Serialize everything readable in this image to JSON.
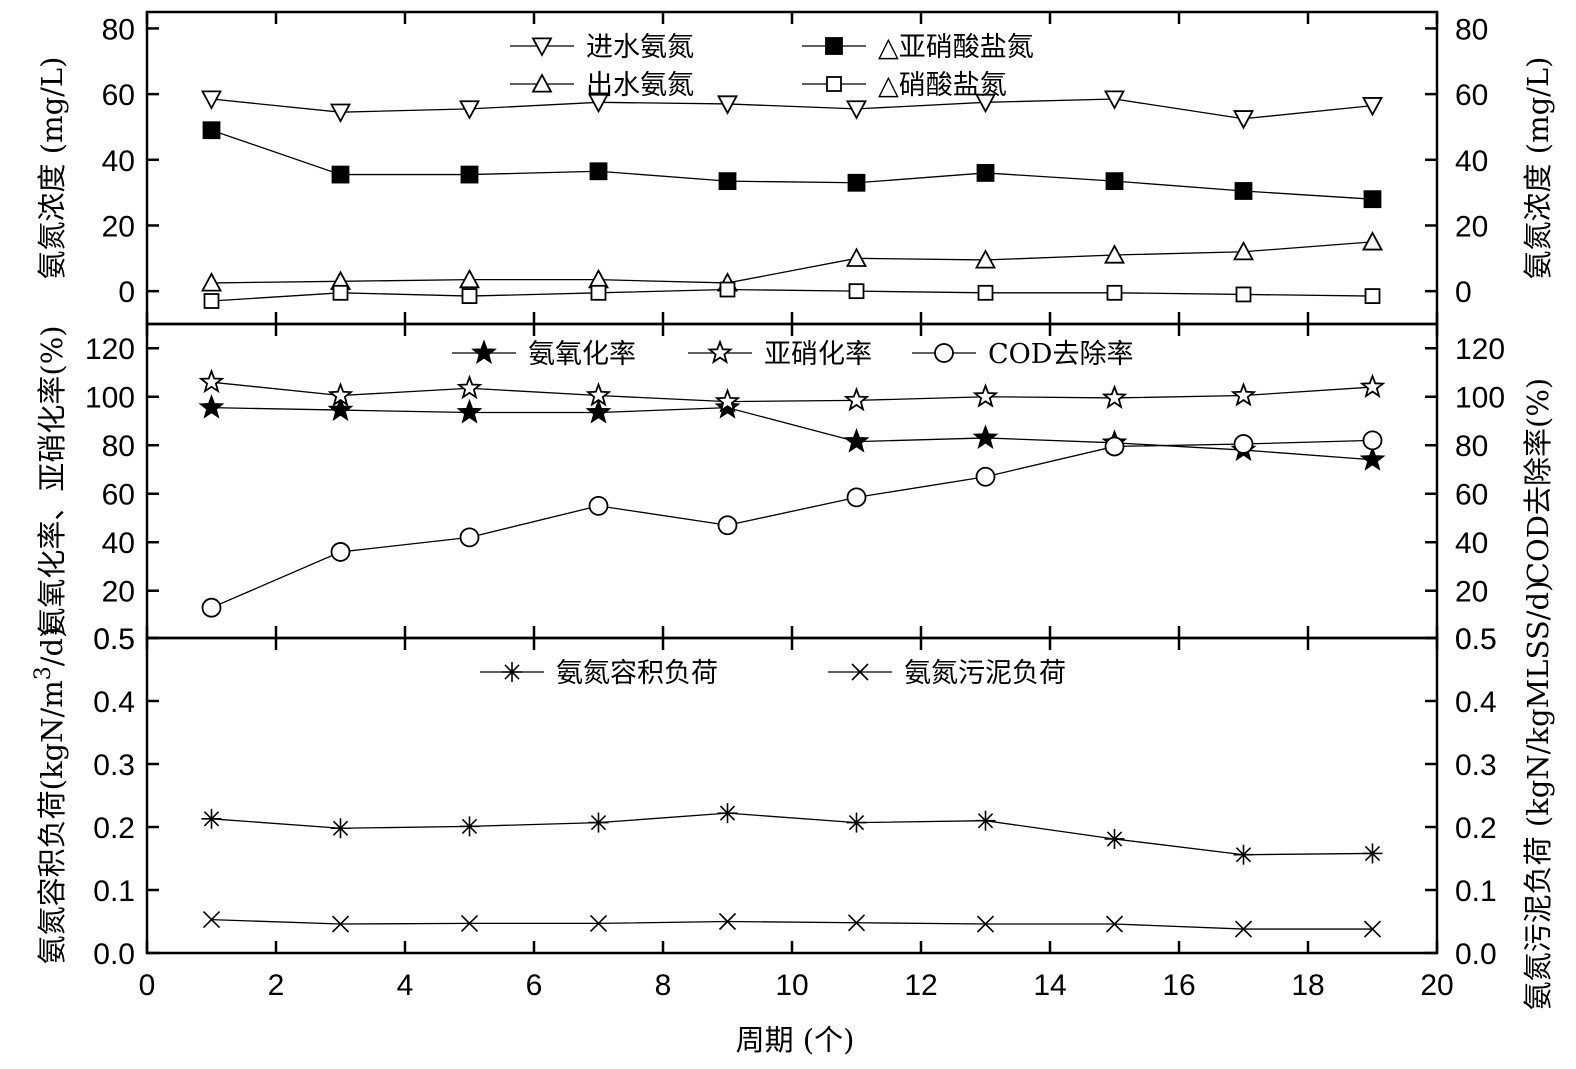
{
  "chart_data": [
    {
      "type": "line",
      "panel": "top",
      "x": [
        1,
        3,
        5,
        7,
        9,
        11,
        13,
        15,
        17,
        19
      ],
      "xlim": [
        0,
        20
      ],
      "ylim": [
        -10,
        85
      ],
      "yticks": [
        0,
        20,
        40,
        60,
        80
      ],
      "ylabel_left": "氨氮浓度 (mg/L)",
      "ylabel_right": "氨氮浓度 (mg/L)",
      "grid": false,
      "series": [
        {
          "name": "进水氨氮",
          "marker": "triangle-down-open",
          "legend_line": "—▽—",
          "values": [
            58.5,
            54.5,
            55.5,
            57.5,
            57,
            55.5,
            57.5,
            58.5,
            52.5,
            56.5
          ]
        },
        {
          "name": "△亚硝酸盐氮",
          "marker": "square-filled",
          "legend_line": "—■—",
          "values": [
            49,
            35.5,
            35.5,
            36.5,
            33.5,
            33,
            36,
            33.5,
            30.5,
            28
          ]
        },
        {
          "name": "出水氨氮",
          "marker": "triangle-up-open",
          "legend_line": "—△—",
          "values": [
            2.5,
            3,
            3.5,
            3.5,
            2.5,
            10,
            9.5,
            11,
            12,
            15
          ]
        },
        {
          "name": "△硝酸盐氮",
          "marker": "square-open",
          "legend_line": "—□—",
          "values": [
            -3,
            -0.5,
            -1.5,
            -0.5,
            0.5,
            0,
            -0.5,
            -0.5,
            -1,
            -1.5
          ]
        }
      ]
    },
    {
      "type": "line",
      "panel": "middle",
      "x": [
        1,
        3,
        5,
        7,
        9,
        11,
        13,
        15,
        17,
        19
      ],
      "xlim": [
        0,
        20
      ],
      "ylim": [
        0.5,
        130
      ],
      "yticks": [
        0.5,
        20,
        40,
        60,
        80,
        100,
        120
      ],
      "ytick_labels": [
        "0.5",
        "20",
        "40",
        "60",
        "80",
        "100",
        "120"
      ],
      "ylabel_left": "氨氧化率、亚硝化率(%)",
      "ylabel_right": "COD去除率(%)",
      "grid": false,
      "series": [
        {
          "name": "氨氧化率",
          "marker": "star-filled",
          "legend_line": "—★—",
          "values": [
            95.5,
            94.5,
            93.5,
            93.5,
            95.5,
            81.5,
            83,
            81,
            78,
            74
          ]
        },
        {
          "name": "亚硝化率",
          "marker": "star-open",
          "legend_line": "—☆—",
          "values": [
            106,
            100.5,
            103.5,
            100.5,
            98,
            98.5,
            100,
            99.5,
            100.5,
            104
          ]
        },
        {
          "name": "COD去除率",
          "marker": "circle-open",
          "legend_line": "—○—",
          "values": [
            13,
            36,
            42,
            55,
            47,
            58.5,
            67,
            79.5,
            80.5,
            82
          ]
        }
      ]
    },
    {
      "type": "line",
      "panel": "bottom",
      "x": [
        1,
        3,
        5,
        7,
        9,
        11,
        13,
        15,
        17,
        19
      ],
      "xlim": [
        0,
        20
      ],
      "xticks": [
        0,
        2,
        4,
        6,
        8,
        10,
        12,
        14,
        16,
        18,
        20
      ],
      "xlabel": "周期 (个)",
      "ylim": [
        0,
        0.5
      ],
      "yticks": [
        0.0,
        0.1,
        0.2,
        0.3,
        0.4,
        0.5
      ],
      "ytick_labels": [
        "0.0",
        "0.1",
        "0.2",
        "0.3",
        "0.4",
        "0.5"
      ],
      "ylabel_left_main": "氨氮容积负荷(kgN/m",
      "ylabel_left_sup": "3",
      "ylabel_left_tail": "/d)",
      "ylabel_right": "氨氮污泥负荷 (kgN/kgMLSS/d)",
      "grid": false,
      "series": [
        {
          "name": "氨氮容积负荷",
          "marker": "asterisk",
          "legend_line": "—✳—",
          "values": [
            0.213,
            0.198,
            0.201,
            0.207,
            0.222,
            0.207,
            0.21,
            0.181,
            0.156,
            0.158
          ]
        },
        {
          "name": "氨氮污泥负荷",
          "marker": "cross",
          "legend_line": "—×—",
          "values": [
            0.053,
            0.046,
            0.047,
            0.047,
            0.05,
            0.048,
            0.046,
            0.046,
            0.038,
            0.038
          ]
        }
      ]
    }
  ]
}
